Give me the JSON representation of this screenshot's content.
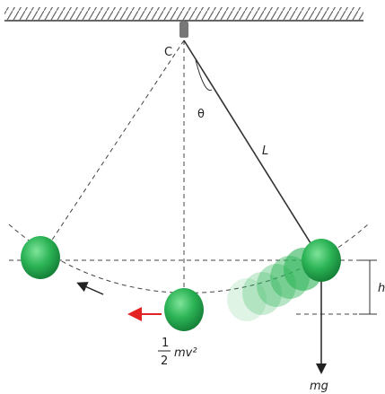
{
  "labels": {
    "pivot": "C",
    "angle": "θ",
    "length": "L",
    "height": "h",
    "weight": "mg",
    "energy_numerator": "1",
    "energy_denominator": "2",
    "energy_term": "mv²"
  }
}
